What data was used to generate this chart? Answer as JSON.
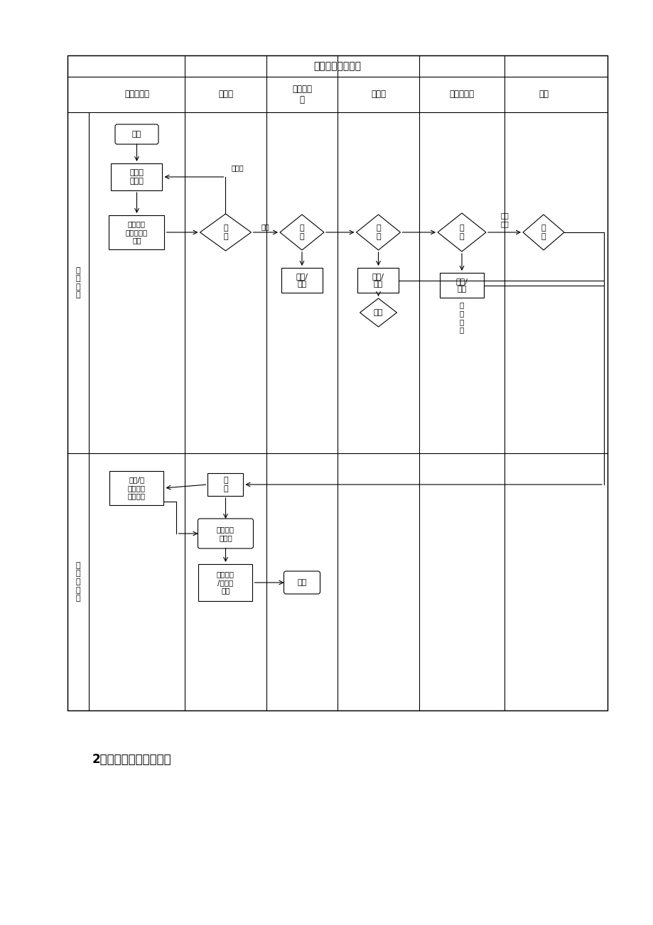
{
  "title": "货币资金业务流程",
  "columns": [
    "业务经办人",
    "财务处",
    "处室负责\n人",
    "财务处",
    "分管副局长",
    "局长"
  ],
  "section1_label": "支\n出\n审\n批",
  "section2_label": "付\n款\n和\n记\n账",
  "bg_color": "#ffffff",
  "line_color": "#000000",
  "bottom_text": "2、流程节点简要说明："
}
